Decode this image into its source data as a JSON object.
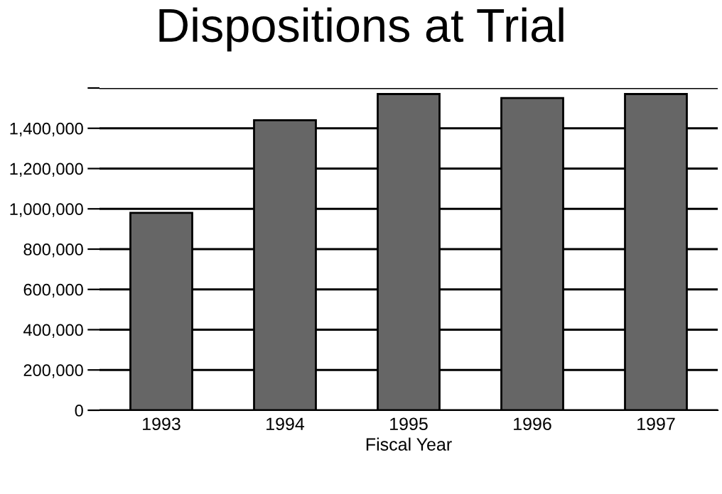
{
  "chart_data": {
    "type": "bar",
    "title": "Dispositions at Trial",
    "xlabel": "Fiscal Year",
    "categories": [
      "1993",
      "1994",
      "1995",
      "1996",
      "1997"
    ],
    "values": [
      980000,
      1440000,
      1570000,
      1550000,
      1570000
    ],
    "color": "#666666",
    "ylim": [
      0,
      1600000
    ],
    "yticks": [
      {
        "value": 0,
        "label": "0"
      },
      {
        "value": 200000,
        "label": "200,000"
      },
      {
        "value": 400000,
        "label": "400,000"
      },
      {
        "value": 600000,
        "label": "600,000"
      },
      {
        "value": 800000,
        "label": "800,000"
      },
      {
        "value": 1000000,
        "label": "1,000,000"
      },
      {
        "value": 1200000,
        "label": "1,200,000"
      },
      {
        "value": 1400000,
        "label": "1,400,000"
      },
      {
        "value": 1600000,
        "label": null
      }
    ],
    "grid": "y"
  }
}
